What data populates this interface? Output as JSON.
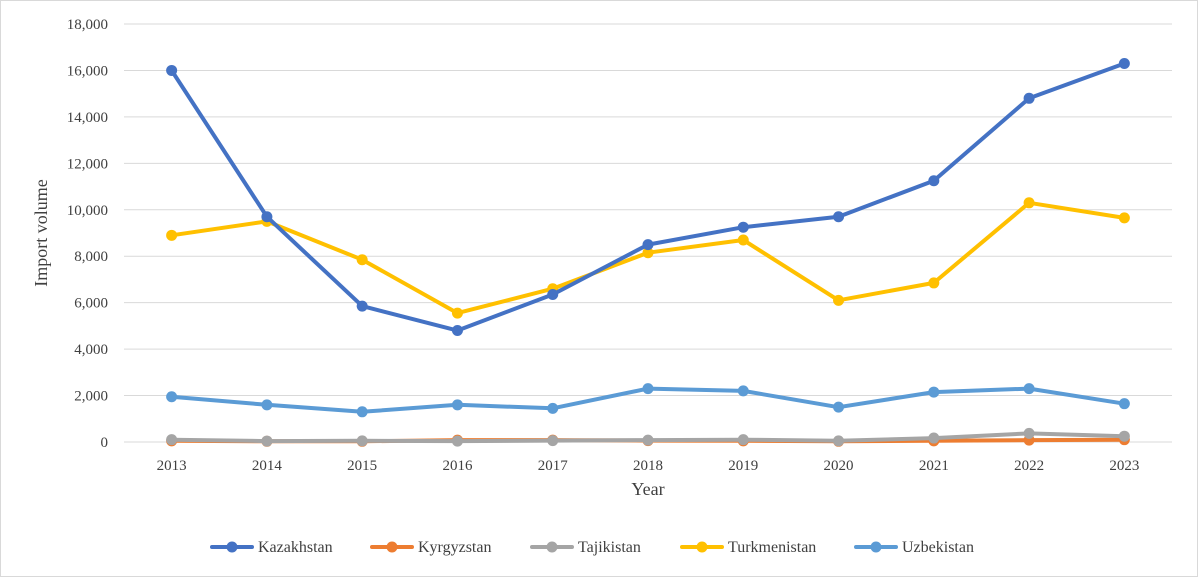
{
  "chart_data": {
    "type": "line",
    "title": "",
    "xlabel": "Year",
    "ylabel": "Import volume",
    "ylim": [
      0,
      18000
    ],
    "yticks": [
      "0",
      "2,000",
      "4,000",
      "6,000",
      "8,000",
      "10,000",
      "12,000",
      "14,000",
      "16,000",
      "18,000"
    ],
    "x": [
      "2013",
      "2014",
      "2015",
      "2016",
      "2017",
      "2018",
      "2019",
      "2020",
      "2021",
      "2022",
      "2023"
    ],
    "grid": "horizontal",
    "legend": "bottom",
    "series": [
      {
        "name": "Kazakhstan",
        "color": "#4472c4",
        "values": [
          16000,
          9700,
          5850,
          4800,
          6350,
          8500,
          9250,
          9700,
          11250,
          14800,
          16300
        ]
      },
      {
        "name": "Kyrgyzstan",
        "color": "#ed7d31",
        "values": [
          50,
          30,
          30,
          80,
          80,
          60,
          50,
          30,
          50,
          80,
          100
        ]
      },
      {
        "name": "Tajikistan",
        "color": "#a5a5a5",
        "values": [
          100,
          40,
          50,
          40,
          60,
          80,
          100,
          50,
          170,
          370,
          250
        ]
      },
      {
        "name": "Turkmenistan",
        "color": "#ffc000",
        "values": [
          8900,
          9500,
          7850,
          5550,
          6600,
          8150,
          8700,
          6100,
          6850,
          10300,
          9650
        ]
      },
      {
        "name": "Uzbekistan",
        "color": "#5b9bd5",
        "values": [
          1950,
          1600,
          1300,
          1600,
          1450,
          2300,
          2200,
          1500,
          2150,
          2300,
          1650
        ]
      }
    ]
  }
}
